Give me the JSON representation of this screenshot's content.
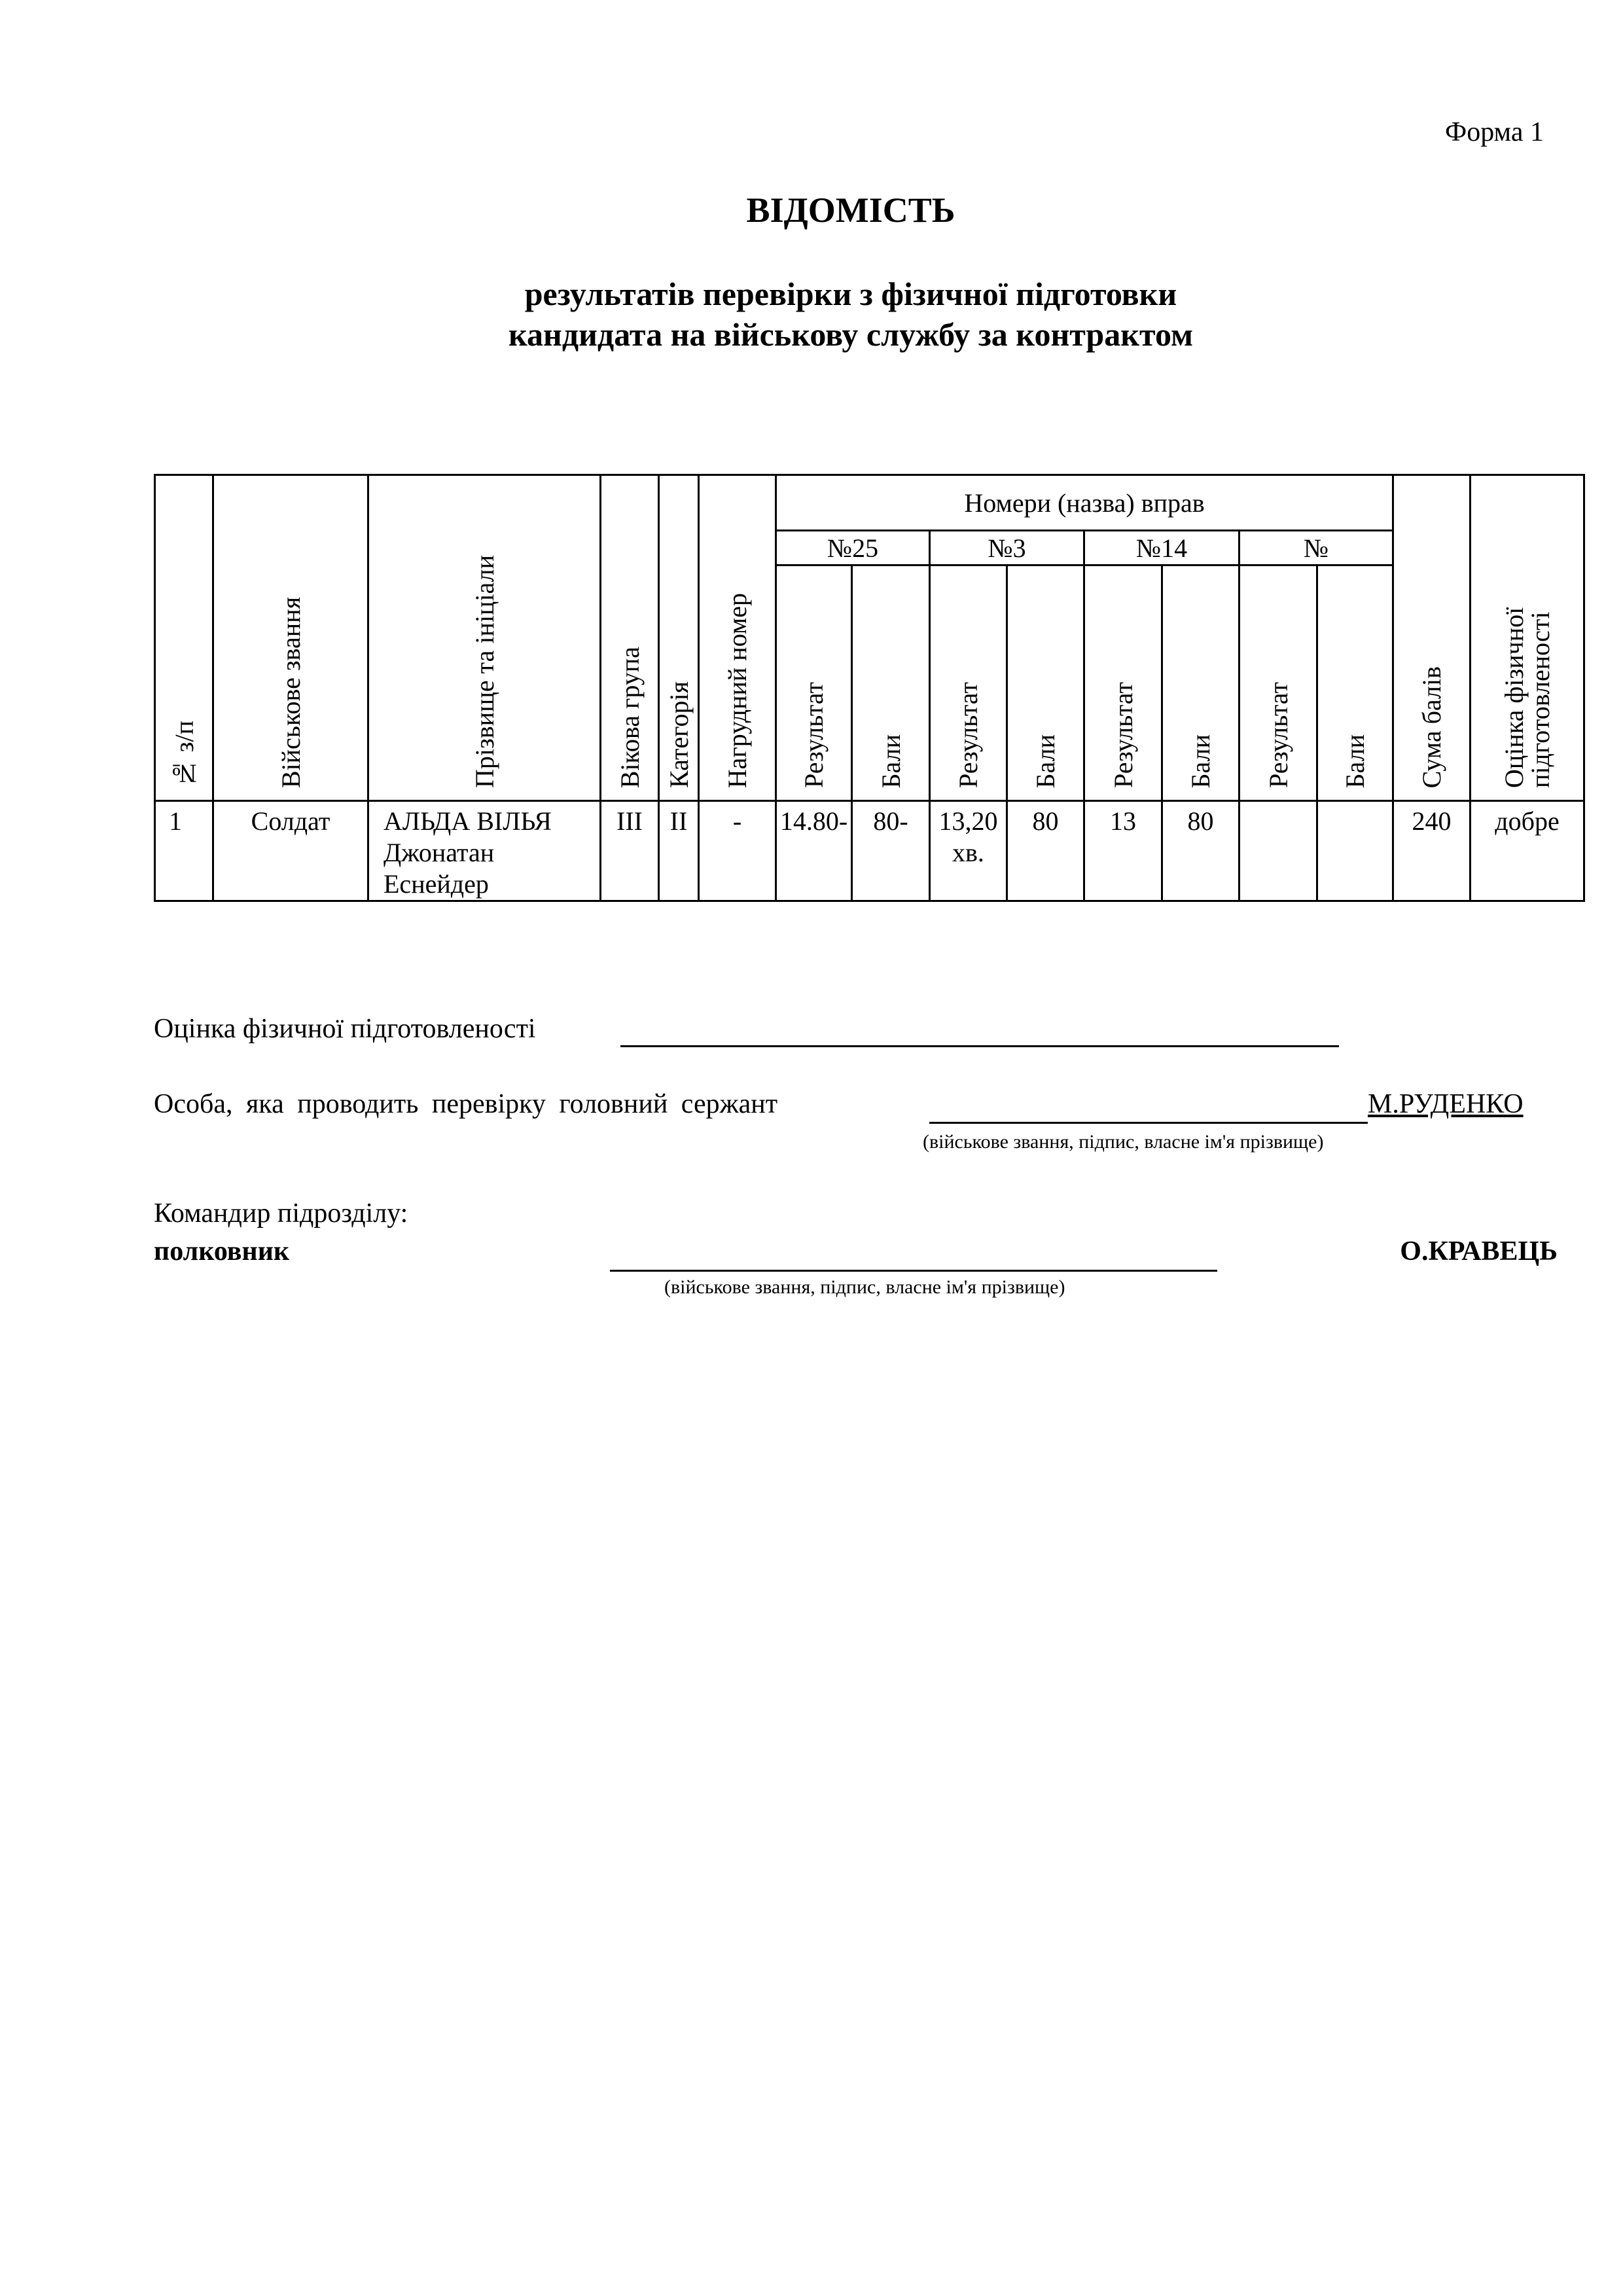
{
  "form_label": "Форма 1",
  "title": "ВІДОМІСТЬ",
  "subtitle_line1": "результатів перевірки з фізичної підготовки",
  "subtitle_line2": "кандидата на військову службу за контрактом",
  "table": {
    "headers": {
      "num": "№ з/п",
      "rank": "Військове звання",
      "name": "Прізвище та ініціали",
      "age_group": "Вікова група",
      "category": "Категорія",
      "bib": "Нагрудний номер",
      "exercises": "Номери (назва) вправ",
      "exercise_numbers": [
        "№25",
        "№3",
        "№14",
        "№"
      ],
      "result": "Результат",
      "points": "Бали",
      "total": "Сума балів",
      "assessment": "Оцінка фізичної підготовленості"
    },
    "rows": [
      {
        "num": "1",
        "rank": "Солдат",
        "name_line1": "АЛЬДА ВІЛЬЯ",
        "name_line2": "Джонатан",
        "name_line3": "Еснейдер",
        "age_group": "III",
        "category": "II",
        "bib": "-",
        "ex1_result": "14.80-",
        "ex1_points": "80-",
        "ex2_result_line1": "13,20",
        "ex2_result_line2": "хв.",
        "ex2_points": "80",
        "ex3_result": "13",
        "ex3_points": "80",
        "ex4_result": "",
        "ex4_points": "",
        "total": "240",
        "assessment": "добре"
      }
    ]
  },
  "footer": {
    "assessment_label": "Оцінка фізичної підготовленості",
    "inspector_label": "Особа, яка проводить перевірку головний сержант",
    "inspector_name": "М.РУДЕНКО",
    "signature_hint": "(військове звання, підпис, власне ім'я прізвище)",
    "commander_label": "Командир підрозділу:",
    "commander_rank": "полковник",
    "commander_name": "О.КРАВЕЦЬ",
    "commander_signature_hint": "(військове звання, підпис, власне ім'я прізвище)"
  }
}
